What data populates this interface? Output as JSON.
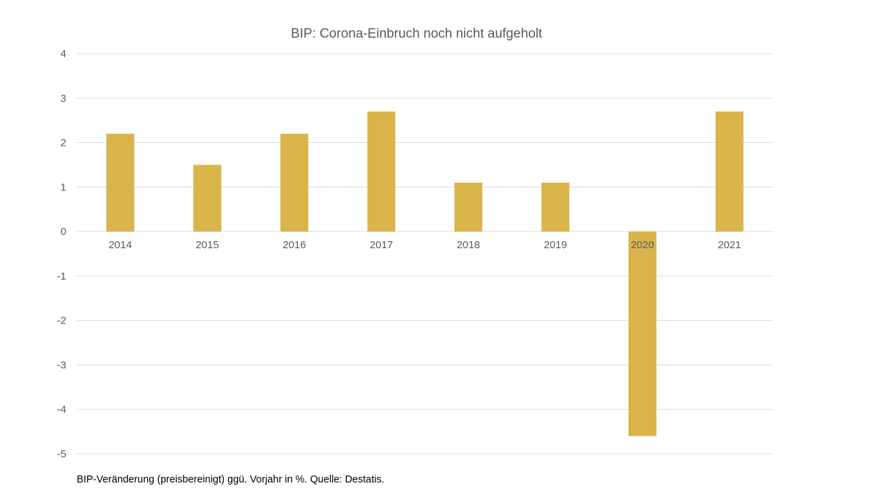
{
  "chart_data": {
    "type": "bar",
    "title": "BIP: Corona-Einbruch  noch  nicht  aufgeholt",
    "categories": [
      "2014",
      "2015",
      "2016",
      "2017",
      "2018",
      "2019",
      "2020",
      "2021"
    ],
    "values": [
      2.2,
      1.5,
      2.2,
      2.7,
      1.1,
      1.1,
      -4.6,
      2.7
    ],
    "ylim": [
      -5,
      4
    ],
    "yticks": [
      4,
      3,
      2,
      1,
      0,
      -1,
      -2,
      -3,
      -4,
      -5
    ],
    "xlabel": "",
    "ylabel": "",
    "grid": true,
    "legend": "none",
    "bar_color": "#D8B44B",
    "grid_color": "#D9D9D9",
    "text_color": "#595959"
  },
  "footnote": "BIP-Veränderung  (preisbereinigt) ggü. Vorjahr in %. Quelle:  Destatis."
}
